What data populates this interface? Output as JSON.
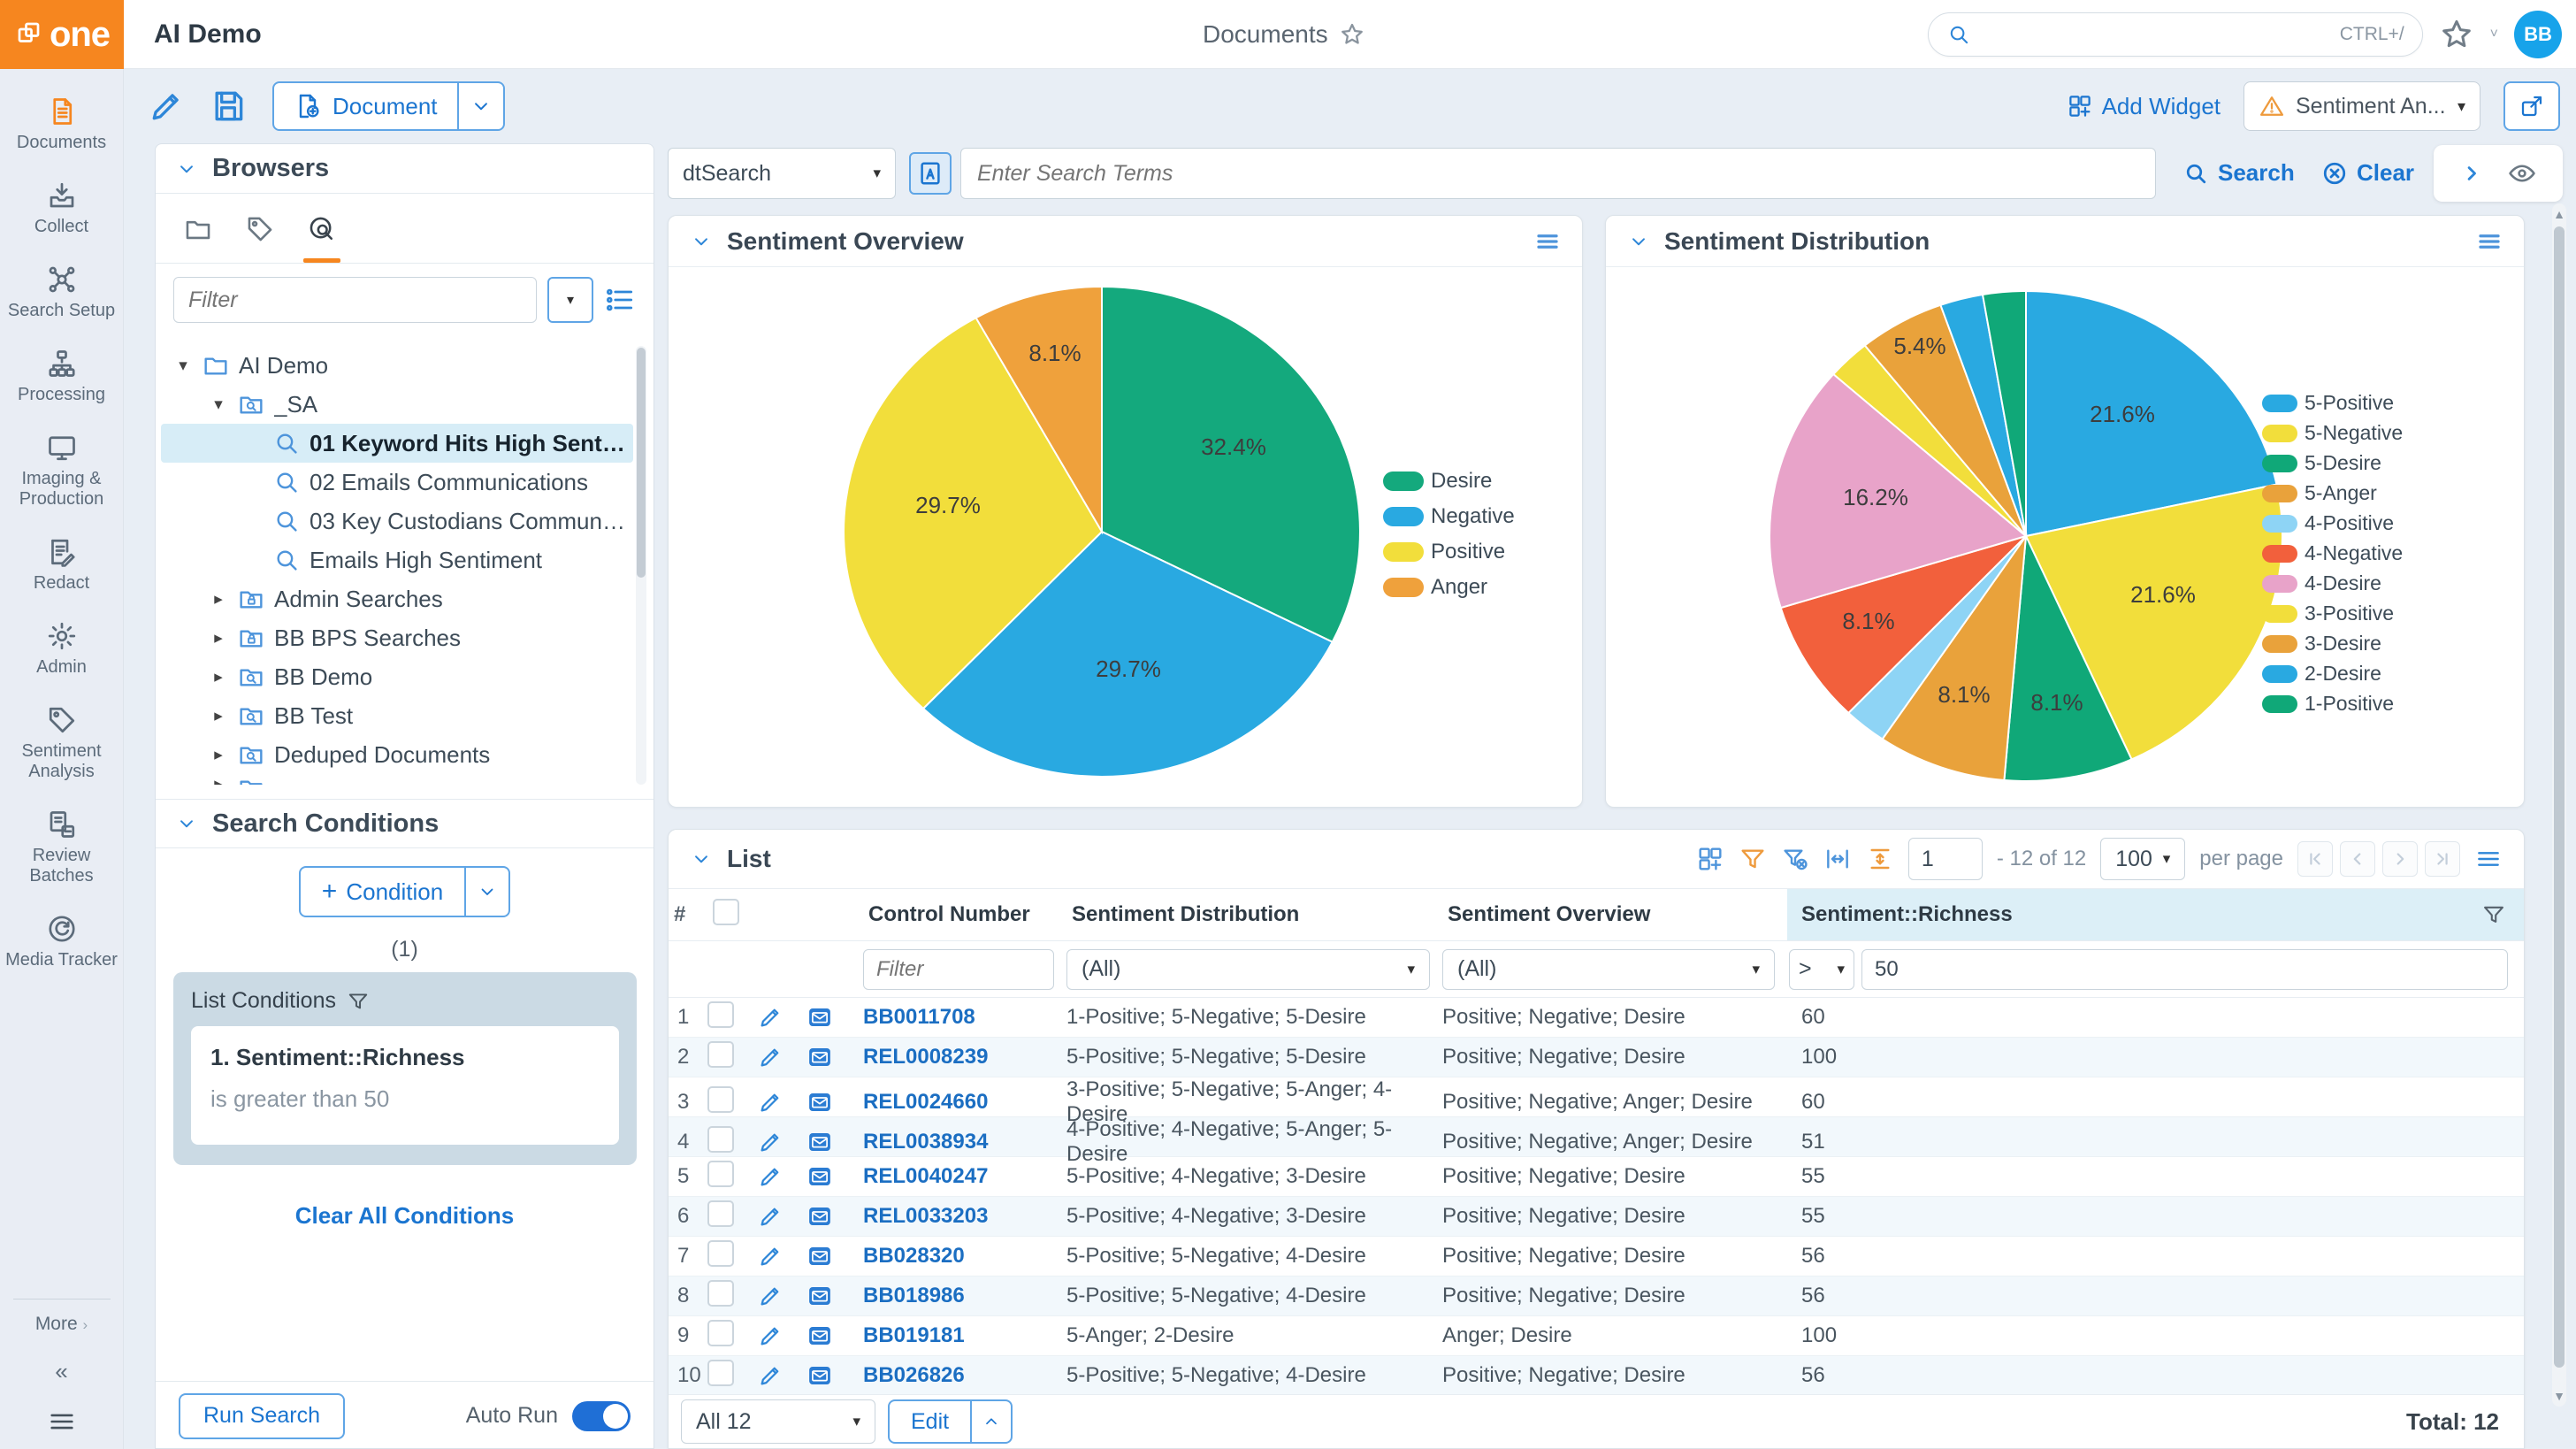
{
  "brand": {
    "name": "one"
  },
  "header": {
    "project": "AI Demo",
    "page_title": "Documents",
    "shortcut": "CTRL+/",
    "avatar": "BB"
  },
  "subbar": {
    "document_label": "Document",
    "add_widget_label": "Add Widget",
    "widget_selector_value": "Sentiment An..."
  },
  "rail": {
    "items": [
      {
        "icon": "documents",
        "label": "Documents",
        "active": true
      },
      {
        "icon": "collect",
        "label": "Collect"
      },
      {
        "icon": "search-setup",
        "label": "Search Setup"
      },
      {
        "icon": "processing",
        "label": "Processing"
      },
      {
        "icon": "imaging",
        "label": "Imaging & Production"
      },
      {
        "icon": "redact",
        "label": "Redact"
      },
      {
        "icon": "admin",
        "label": "Admin"
      },
      {
        "icon": "sentiment",
        "label": "Sentiment Analysis"
      },
      {
        "icon": "review-batches",
        "label": "Review Batches"
      },
      {
        "icon": "media-tracker",
        "label": "Media Tracker"
      }
    ],
    "more_label": "More"
  },
  "browsers": {
    "title": "Browsers",
    "filter_placeholder": "Filter",
    "tree": [
      {
        "label": "AI Demo",
        "depth": 0,
        "icon": "folder",
        "caret": "down"
      },
      {
        "label": "_SA",
        "depth": 1,
        "icon": "folder-search",
        "caret": "down"
      },
      {
        "label": "01 Keyword Hits High Sentiment",
        "depth": 2,
        "icon": "search",
        "caret": "none",
        "selected": true
      },
      {
        "label": "02 Emails Communications",
        "depth": 2,
        "icon": "search",
        "caret": "none"
      },
      {
        "label": "03 Key Custodians Communications",
        "depth": 2,
        "icon": "search",
        "caret": "none"
      },
      {
        "label": "Emails High Sentiment",
        "depth": 2,
        "icon": "search",
        "caret": "none"
      },
      {
        "label": "Admin Searches",
        "depth": 1,
        "icon": "folder-lock",
        "caret": "right"
      },
      {
        "label": "BB BPS Searches",
        "depth": 1,
        "icon": "folder-lock",
        "caret": "right"
      },
      {
        "label": "BB Demo",
        "depth": 1,
        "icon": "folder-search",
        "caret": "right"
      },
      {
        "label": "BB Test",
        "depth": 1,
        "icon": "folder-search",
        "caret": "right"
      },
      {
        "label": "Deduped Documents",
        "depth": 1,
        "icon": "folder-search",
        "caret": "right"
      },
      {
        "label": "",
        "depth": 1,
        "icon": "folder-search",
        "caret": "right",
        "partial": true
      }
    ]
  },
  "search_conditions": {
    "title": "Search Conditions",
    "add_button_label": "Condition",
    "count": "(1)",
    "list_conditions_title": "List Conditions",
    "rule_title": "1. Sentiment::Richness",
    "rule_body": "is greater than 50",
    "clear_all_label": "Clear All Conditions",
    "run_search_label": "Run Search",
    "auto_run_label": "Auto Run"
  },
  "searchbar": {
    "engine_value": "dtSearch",
    "terms_placeholder": "Enter Search Terms",
    "search_label": "Search",
    "clear_label": "Clear"
  },
  "chart_data": [
    {
      "type": "pie",
      "title": "Sentiment Overview",
      "labels": [
        "Desire",
        "Negative",
        "Positive",
        "Anger"
      ],
      "values": [
        32.4,
        29.7,
        29.7,
        8.1
      ],
      "colors": [
        "#14A97D",
        "#29A9E1",
        "#F2DE3B",
        "#EFA13C"
      ],
      "legend_position": "right",
      "label_format": "percent"
    },
    {
      "type": "pie",
      "title": "Sentiment Distribution",
      "labels": [
        "5-Positive",
        "5-Negative",
        "5-Desire",
        "5-Anger",
        "4-Positive",
        "4-Negative",
        "4-Desire",
        "3-Positive",
        "3-Desire",
        "2-Desire",
        "1-Positive"
      ],
      "values": [
        21.6,
        21.6,
        8.1,
        8.1,
        2.7,
        8.1,
        16.2,
        2.7,
        5.4,
        2.7,
        2.7
      ],
      "colors": [
        "#29A9E1",
        "#F2DE3B",
        "#10A878",
        "#E9A23B",
        "#8ED4F5",
        "#F2603C",
        "#E8A3C9",
        "#F2DE3B",
        "#E9A23B",
        "#29A9E1",
        "#10A878"
      ],
      "legend_position": "right",
      "label_format": "percent",
      "label_min_value": 5
    }
  ],
  "list": {
    "title": "List",
    "page_value": "1",
    "range_label": "- 12 of 12",
    "per_page_value": "100",
    "per_page_suffix": "per page",
    "columns": [
      "#",
      "Control Number",
      "Sentiment Distribution",
      "Sentiment Overview",
      "Sentiment::Richness"
    ],
    "filters": {
      "control_placeholder": "Filter",
      "distribution_value": "(All)",
      "overview_value": "(All)",
      "operator_value": ">",
      "richness_value": "50"
    },
    "rows": [
      [
        "1",
        "BB0011708",
        "1-Positive; 5-Negative; 5-Desire",
        "Positive; Negative; Desire",
        "60"
      ],
      [
        "2",
        "REL0008239",
        "5-Positive; 5-Negative; 5-Desire",
        "Positive; Negative; Desire",
        "100"
      ],
      [
        "3",
        "REL0024660",
        "3-Positive; 5-Negative; 5-Anger; 4-Desire",
        "Positive; Negative; Anger; Desire",
        "60"
      ],
      [
        "4",
        "REL0038934",
        "4-Positive; 4-Negative; 5-Anger; 5-Desire",
        "Positive; Negative; Anger; Desire",
        "51"
      ],
      [
        "5",
        "REL0040247",
        "5-Positive; 4-Negative; 3-Desire",
        "Positive; Negative; Desire",
        "55"
      ],
      [
        "6",
        "REL0033203",
        "5-Positive; 4-Negative; 3-Desire",
        "Positive; Negative; Desire",
        "55"
      ],
      [
        "7",
        "BB028320",
        "5-Positive; 5-Negative; 4-Desire",
        "Positive; Negative; Desire",
        "56"
      ],
      [
        "8",
        "BB018986",
        "5-Positive; 5-Negative; 4-Desire",
        "Positive; Negative; Desire",
        "56"
      ],
      [
        "9",
        "BB019181",
        "5-Anger; 2-Desire",
        "Anger; Desire",
        "100"
      ],
      [
        "10",
        "BB026826",
        "5-Positive; 5-Negative; 4-Desire",
        "Positive; Negative; Desire",
        "56"
      ]
    ],
    "selection_value": "All 12",
    "edit_label": "Edit",
    "total_label": "Total: 12"
  }
}
